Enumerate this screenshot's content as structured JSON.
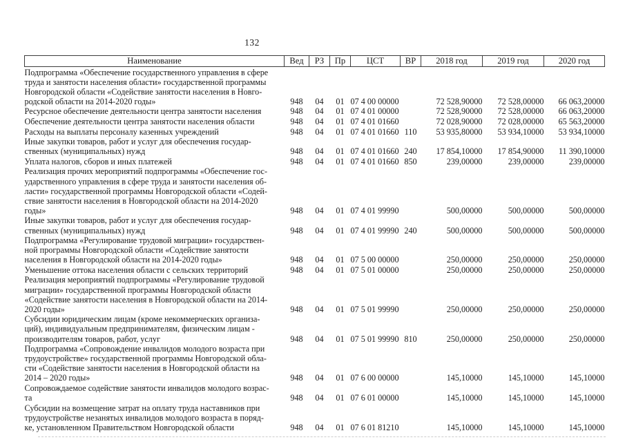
{
  "page": {
    "number": "132"
  },
  "colors": {
    "text": "#1c1c1c",
    "border": "#3c3c3c",
    "background": "#ffffff"
  },
  "table": {
    "columns": [
      {
        "key": "name",
        "label": "Наименование"
      },
      {
        "key": "ved",
        "label": "Вед"
      },
      {
        "key": "rz",
        "label": "РЗ"
      },
      {
        "key": "pr",
        "label": "Пр"
      },
      {
        "key": "cst",
        "label": "ЦСТ"
      },
      {
        "key": "vr",
        "label": "ВР"
      },
      {
        "key": "y2018",
        "label": "2018 год"
      },
      {
        "key": "y2019",
        "label": "2019 год"
      },
      {
        "key": "y2020",
        "label": "2020 год"
      }
    ],
    "rows": [
      {
        "name": "Подпрограмма «Обеспечение государственного управления в сфере\nтруда и занятости населения области» государственной программы\nНовгородской области «Содействие занятости населения в Новго-\nродской области на 2014-2020 годы»",
        "ved": "948",
        "rz": "04",
        "pr": "01",
        "cst": "07 4 00 00000",
        "vr": "",
        "y2018": "72 528,90000",
        "y2019": "72 528,00000",
        "y2020": "66 063,20000"
      },
      {
        "name": "Ресурсное обеспечение деятельности центра занятости населения",
        "ved": "948",
        "rz": "04",
        "pr": "01",
        "cst": "07 4 01 00000",
        "vr": "",
        "y2018": "72 528,90000",
        "y2019": "72 528,00000",
        "y2020": "66 063,20000"
      },
      {
        "name": "Обеспечение деятельности центра занятости населения области",
        "ved": "948",
        "rz": "04",
        "pr": "01",
        "cst": "07 4 01 01660",
        "vr": "",
        "y2018": "72 028,90000",
        "y2019": "72 028,00000",
        "y2020": "65 563,20000"
      },
      {
        "name": "Расходы на выплаты персоналу казенных учреждений",
        "ved": "948",
        "rz": "04",
        "pr": "01",
        "cst": "07 4 01 01660",
        "vr": "110",
        "y2018": "53 935,80000",
        "y2019": "53 934,10000",
        "y2020": "53 934,10000"
      },
      {
        "name": "Иные закупки товаров, работ и услуг для обеспечения государ-\nственных (муниципальных) нужд",
        "ved": "948",
        "rz": "04",
        "pr": "01",
        "cst": "07 4 01 01660",
        "vr": "240",
        "y2018": "17 854,10000",
        "y2019": "17 854,90000",
        "y2020": "11 390,10000"
      },
      {
        "name": "Уплата налогов, сборов и иных платежей",
        "ved": "948",
        "rz": "04",
        "pr": "01",
        "cst": "07 4 01 01660",
        "vr": "850",
        "y2018": "239,00000",
        "y2019": "239,00000",
        "y2020": "239,00000"
      },
      {
        "name": "Реализация прочих мероприятий подпрограммы «Обеспечение гос-\nударственного управления в сфере труда и занятости населения об-\nласти» государственной программы Новгородской области «Содей-\nствие занятости населения в Новгородской области на 2014-2020\nгоды»",
        "ved": "948",
        "rz": "04",
        "pr": "01",
        "cst": "07 4 01 99990",
        "vr": "",
        "y2018": "500,00000",
        "y2019": "500,00000",
        "y2020": "500,00000"
      },
      {
        "name": "Иные закупки товаров, работ и услуг для обеспечения государ-\nственных (муниципальных) нужд",
        "ved": "948",
        "rz": "04",
        "pr": "01",
        "cst": "07 4 01 99990",
        "vr": "240",
        "y2018": "500,00000",
        "y2019": "500,00000",
        "y2020": "500,00000"
      },
      {
        "name": "Подпрограмма «Регулирование трудовой миграции» государствен-\nной программы Новгородской области «Содействие занятости\nнаселения в Новгородской области на 2014-2020 годы»",
        "ved": "948",
        "rz": "04",
        "pr": "01",
        "cst": "07 5 00 00000",
        "vr": "",
        "y2018": "250,00000",
        "y2019": "250,00000",
        "y2020": "250,00000"
      },
      {
        "name": "Уменьшение оттока населения области с сельских территорий",
        "ved": "948",
        "rz": "04",
        "pr": "01",
        "cst": "07 5 01 00000",
        "vr": "",
        "y2018": "250,00000",
        "y2019": "250,00000",
        "y2020": "250,00000"
      },
      {
        "name": "Реализация мероприятий подпрограммы «Регулирование трудовой\nмиграции» государственной программы Новгородской области\n«Содействие занятости населения в Новгородской области на 2014-\n2020 годы»",
        "ved": "948",
        "rz": "04",
        "pr": "01",
        "cst": "07 5 01 99990",
        "vr": "",
        "y2018": "250,00000",
        "y2019": "250,00000",
        "y2020": "250,00000"
      },
      {
        "name": "Субсидии юридическим лицам (кроме некоммерческих организа-\nций), индивидуальным предпринимателям, физическим лицам -\nпроизводителям товаров, работ, услуг",
        "ved": "948",
        "rz": "04",
        "pr": "01",
        "cst": "07 5 01 99990",
        "vr": "810",
        "y2018": "250,00000",
        "y2019": "250,00000",
        "y2020": "250,00000"
      },
      {
        "name": "Подпрограмма «Сопровождение инвалидов молодого возраста при\nтрудоустройстве» государственной программы Новгородской обла-\nсти «Содействие занятости населения в Новгородской области на\n2014 – 2020 годы»",
        "ved": "948",
        "rz": "04",
        "pr": "01",
        "cst": "07 6 00 00000",
        "vr": "",
        "y2018": "145,10000",
        "y2019": "145,10000",
        "y2020": "145,10000"
      },
      {
        "name": "Сопровождаемое содействие занятости инвалидов молодого возрас-\nта",
        "ved": "948",
        "rz": "04",
        "pr": "01",
        "cst": "07 6 01 00000",
        "vr": "",
        "y2018": "145,10000",
        "y2019": "145,10000",
        "y2020": "145,10000"
      },
      {
        "name": "Субсидии на возмещение затрат на оплату труда наставников при\nтрудоустройстве незанятых инвалидов молодого возраста в поряд-\nке, установленном Правительством Новгородской области",
        "ved": "948",
        "rz": "04",
        "pr": "01",
        "cst": "07 6 01 81210",
        "vr": "",
        "y2018": "145,10000",
        "y2019": "145,10000",
        "y2020": "145,10000"
      }
    ]
  }
}
